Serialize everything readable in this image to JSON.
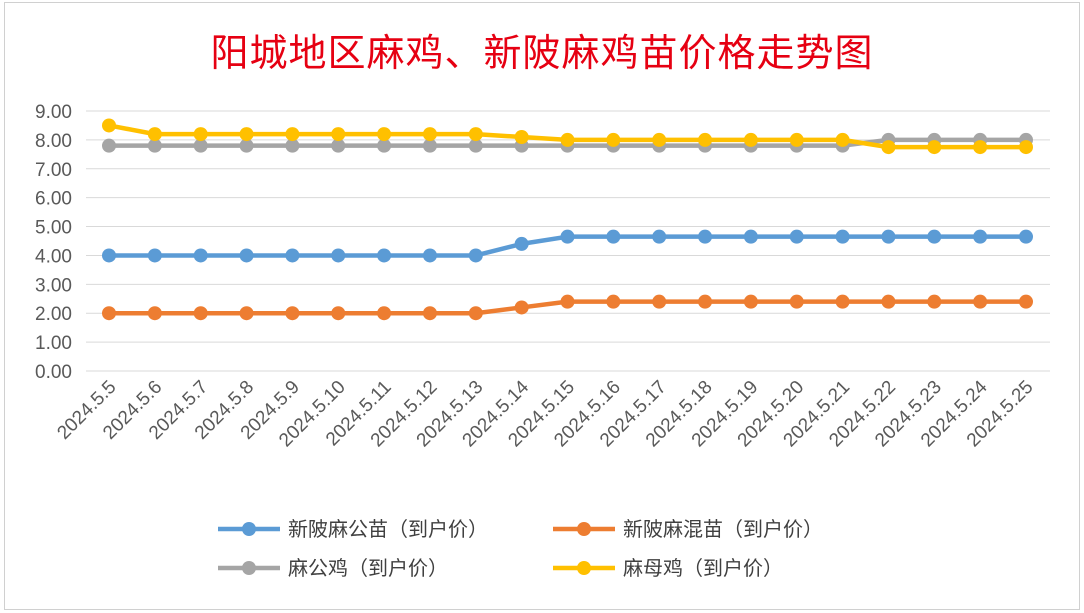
{
  "chart_data": {
    "type": "line",
    "title": "阳城地区麻鸡、新陂麻鸡苗价格走势图",
    "xlabel": "",
    "ylabel": "",
    "ylim": [
      0,
      9
    ],
    "yticks": [
      "0.00",
      "1.00",
      "2.00",
      "3.00",
      "4.00",
      "5.00",
      "6.00",
      "7.00",
      "8.00",
      "9.00"
    ],
    "grid": true,
    "legend_position": "bottom",
    "categories": [
      "2024.5.5",
      "2024.5.6",
      "2024.5.7",
      "2024.5.8",
      "2024.5.9",
      "2024.5.10",
      "2024.5.11",
      "2024.5.12",
      "2024.5.13",
      "2024.5.14",
      "2024.5.15",
      "2024.5.16",
      "2024.5.17",
      "2024.5.18",
      "2024.5.19",
      "2024.5.20",
      "2024.5.21",
      "2024.5.22",
      "2024.5.23",
      "2024.5.24",
      "2024.5.25"
    ],
    "series": [
      {
        "name": "新陂麻公苗（到户价）",
        "color": "#5b9bd5",
        "values": [
          4.0,
          4.0,
          4.0,
          4.0,
          4.0,
          4.0,
          4.0,
          4.0,
          4.0,
          4.4,
          4.65,
          4.65,
          4.65,
          4.65,
          4.65,
          4.65,
          4.65,
          4.65,
          4.65,
          4.65,
          4.65
        ]
      },
      {
        "name": "新陂麻混苗（到户价）",
        "color": "#ed7d31",
        "values": [
          2.0,
          2.0,
          2.0,
          2.0,
          2.0,
          2.0,
          2.0,
          2.0,
          2.0,
          2.2,
          2.4,
          2.4,
          2.4,
          2.4,
          2.4,
          2.4,
          2.4,
          2.4,
          2.4,
          2.4,
          2.4
        ]
      },
      {
        "name": "麻公鸡（到户价）",
        "color": "#a5a5a5",
        "values": [
          7.8,
          7.8,
          7.8,
          7.8,
          7.8,
          7.8,
          7.8,
          7.8,
          7.8,
          7.8,
          7.8,
          7.8,
          7.8,
          7.8,
          7.8,
          7.8,
          7.8,
          8.0,
          8.0,
          8.0,
          8.0
        ]
      },
      {
        "name": "麻母鸡（到户价）",
        "color": "#ffc000",
        "values": [
          8.5,
          8.2,
          8.2,
          8.2,
          8.2,
          8.2,
          8.2,
          8.2,
          8.2,
          8.1,
          8.0,
          8.0,
          8.0,
          8.0,
          8.0,
          8.0,
          8.0,
          7.75,
          7.75,
          7.75,
          7.75
        ]
      }
    ]
  }
}
